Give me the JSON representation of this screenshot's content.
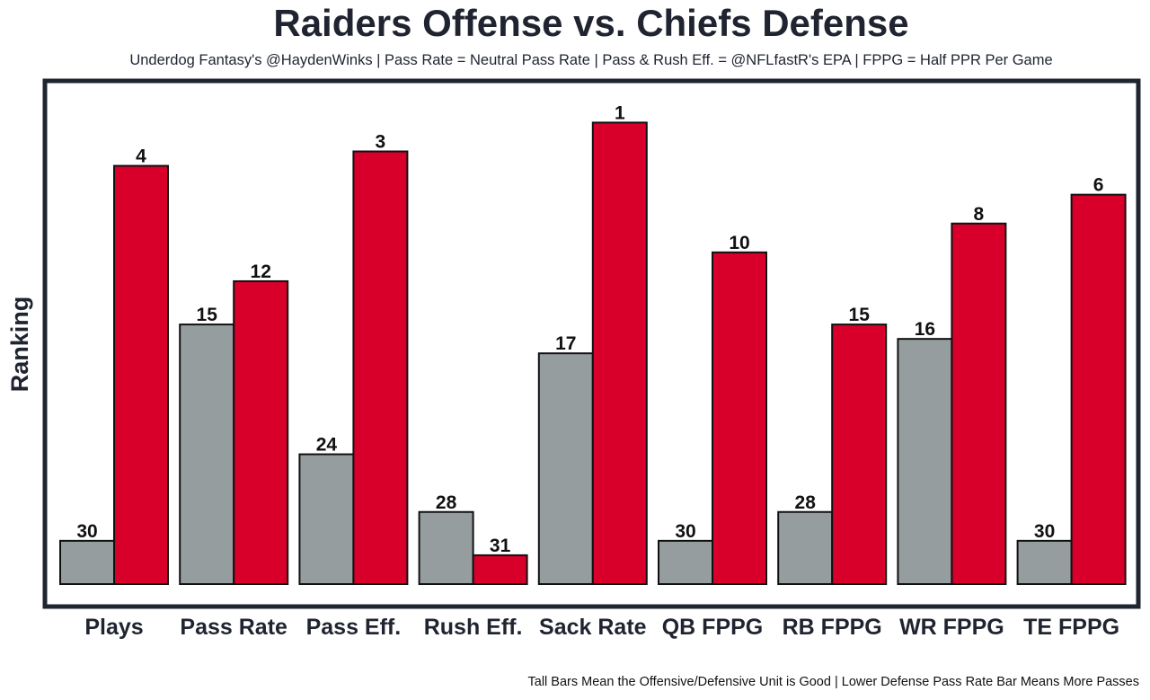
{
  "chart_data": {
    "type": "bar",
    "title": "Raiders Offense vs. Chiefs Defense",
    "subtitle": "Underdog Fantasy's @HaydenWinks | Pass Rate = Neutral Pass Rate | Pass & Rush Eff. = @NFLfastR's EPA | FPPG = Half PPR Per Game",
    "ylabel": "Ranking",
    "footnote": "Tall Bars Mean the Offensive/Defensive Unit is Good | Lower Defense Pass Rate Bar Means More Passes",
    "categories": [
      "Plays",
      "Pass Rate",
      "Pass Eff.",
      "Rush Eff.",
      "Sack Rate",
      "QB FPPG",
      "RB FPPG",
      "WR FPPG",
      "TE FPPG"
    ],
    "series": [
      {
        "values": [
          30,
          15,
          24,
          28,
          17,
          30,
          28,
          16,
          30
        ],
        "color": "#969d9f"
      },
      {
        "values": [
          4,
          12,
          3,
          31,
          1,
          10,
          15,
          8,
          6
        ],
        "color": "#d8002a"
      }
    ],
    "bar_height_rule": "inverted rank: taller bar = better rank (1 = tallest)",
    "max_rank": 32,
    "grid": false,
    "legend": "none"
  }
}
